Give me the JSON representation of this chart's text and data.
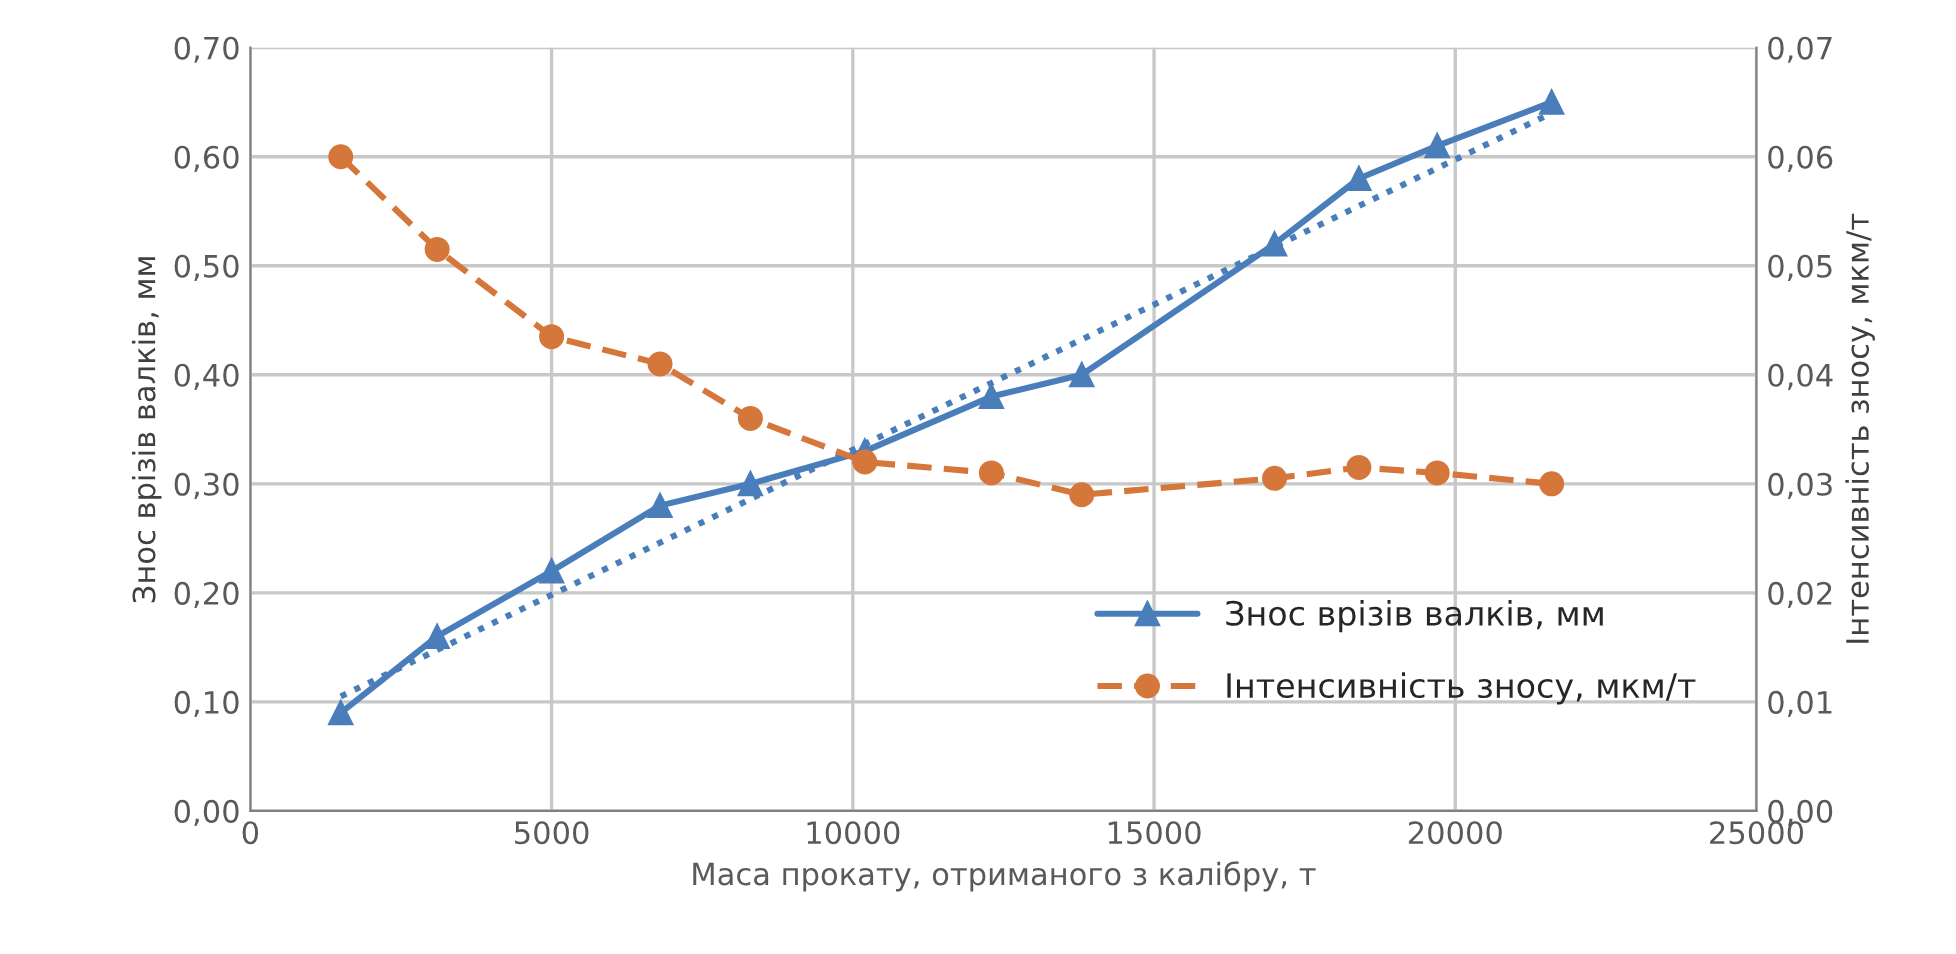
{
  "chart_data": {
    "type": "line",
    "xlabel": "Маса прокату, отриманого з калібру, т",
    "ylabel": "Знос врізів валків, мм",
    "y2label": "Інтенсивність зносу, мкм/т",
    "x": [
      1500,
      3100,
      5000,
      6800,
      8300,
      10200,
      12300,
      13800,
      17000,
      18400,
      19700,
      21600
    ],
    "series": [
      {
        "name": "Знос врізів валків, мм",
        "color": "#4a7ebb",
        "marker": "triangle",
        "line_style": "solid",
        "values": [
          0.09,
          0.16,
          0.22,
          0.28,
          0.3,
          0.33,
          0.38,
          0.4,
          0.52,
          0.58,
          0.61,
          0.65
        ]
      },
      {
        "name": "Інтенсивність зносу, мкм/т",
        "color": "#d5773a",
        "marker": "circle",
        "line_style": "dashed",
        "axis": "y2",
        "values": [
          0.06,
          0.0515,
          0.0435,
          0.041,
          0.036,
          0.032,
          0.031,
          0.029,
          0.0305,
          0.0315,
          0.031,
          0.03
        ]
      },
      {
        "type": "line",
        "color": "#4a7ebb",
        "marker": "none",
        "line_style": "dotted",
        "x": [
          1500,
          21600
        ],
        "values": [
          0.105,
          0.64
        ]
      }
    ],
    "xlim": [
      0,
      25000
    ],
    "xticks": [
      0,
      5000,
      10000,
      15000,
      20000,
      25000
    ],
    "ylim": [
      0,
      0.7
    ],
    "yticks": [
      {
        "value": 0,
        "label": "0,00"
      },
      {
        "value": 0.1,
        "label": "0,10"
      },
      {
        "value": 0.2,
        "label": "0,20"
      },
      {
        "value": 0.3,
        "label": "0,30"
      },
      {
        "value": 0.4,
        "label": "0,40"
      },
      {
        "value": 0.5,
        "label": "0,50"
      },
      {
        "value": 0.6,
        "label": "0,60"
      },
      {
        "value": 0.7,
        "label": "0,70"
      }
    ],
    "y2lim": [
      0,
      0.07
    ],
    "y2ticks": [
      {
        "value": 0,
        "label": "0,00"
      },
      {
        "value": 0.01,
        "label": "0,01"
      },
      {
        "value": 0.02,
        "label": "0,02"
      },
      {
        "value": 0.03,
        "label": "0,03"
      },
      {
        "value": 0.04,
        "label": "0,04"
      },
      {
        "value": 0.05,
        "label": "0,05"
      },
      {
        "value": 0.06,
        "label": "0,06"
      },
      {
        "value": 0.07,
        "label": "0,07"
      }
    ],
    "grid": true,
    "legend": "right"
  }
}
